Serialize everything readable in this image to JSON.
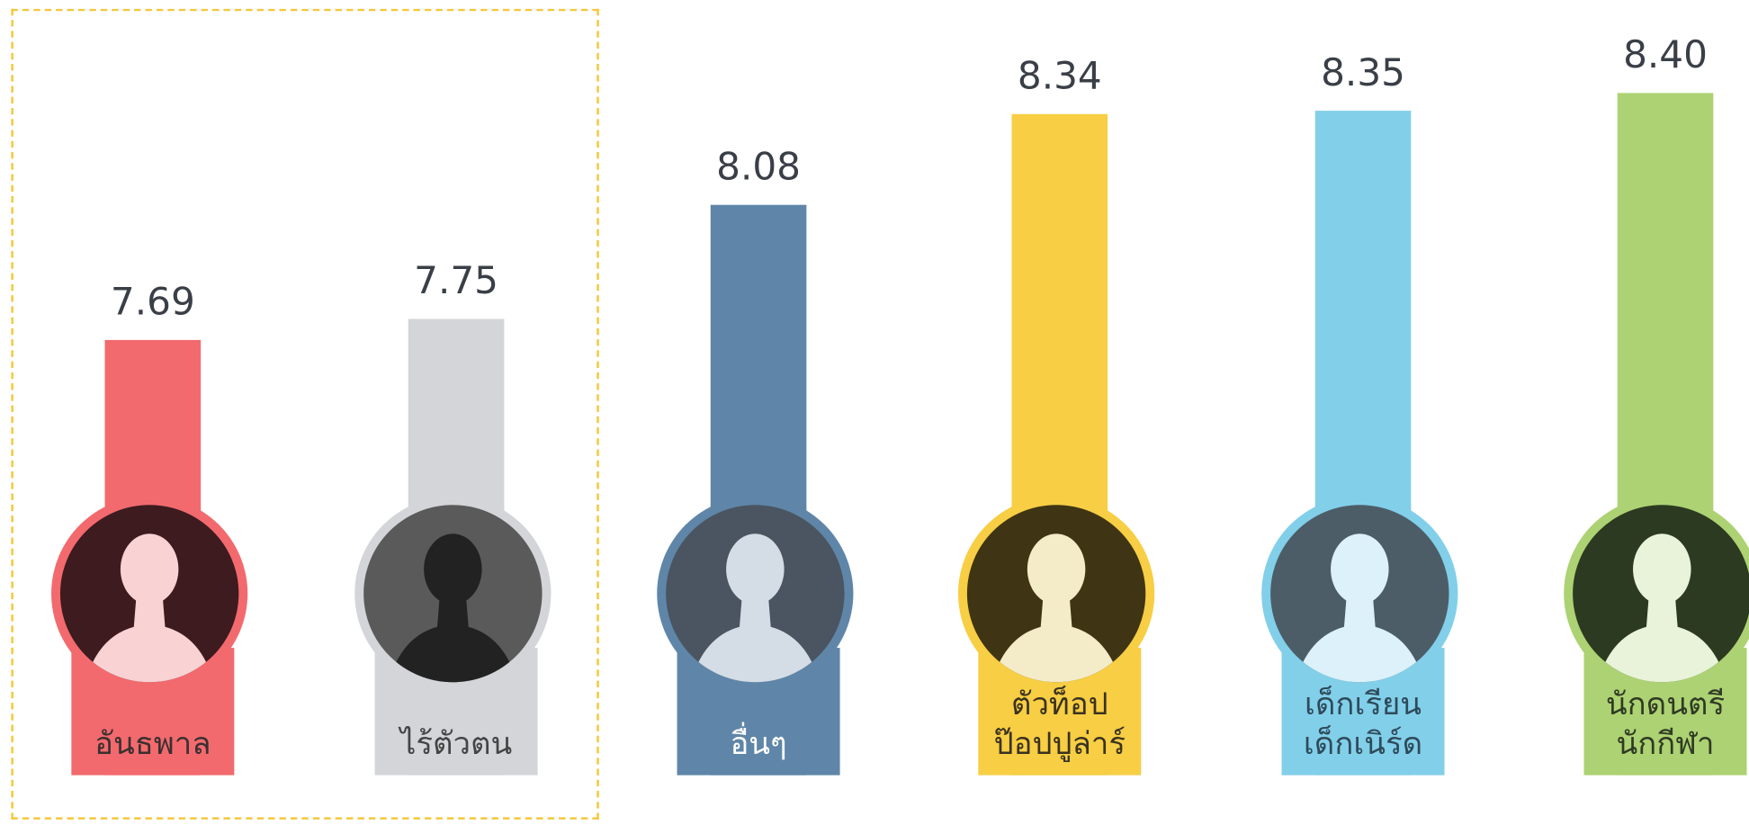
{
  "chart_data": {
    "type": "bar",
    "categories": [
      "อันธพาล",
      "ไร้ตัวตน",
      "อื่นๆ",
      "ตัวท็อป\nป๊อปปูล่าร์",
      "เด็กเรียน\nเด็กเนิร์ด",
      "นักดนตรี\nนักกีฬา"
    ],
    "values": [
      7.69,
      7.75,
      8.08,
      8.34,
      8.35,
      8.4
    ],
    "value_labels": [
      "7.69",
      "7.75",
      "8.08",
      "8.34",
      "8.35",
      "8.40"
    ],
    "colors": [
      "#f26a6e",
      "#d3d5d9",
      "#5f86a8",
      "#f7ce44",
      "#82cfe9",
      "#add273"
    ]
  }
}
